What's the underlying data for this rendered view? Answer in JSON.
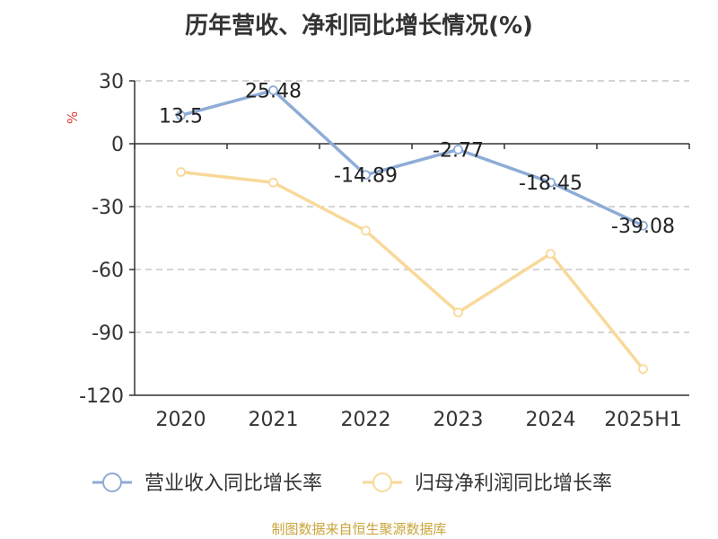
{
  "chart_data": {
    "type": "line",
    "title": "历年营收、净利同比增长情况(%)",
    "ylabel": "%",
    "xlabel": "",
    "categories": [
      "2020",
      "2021",
      "2022",
      "2023",
      "2024",
      "2025H1"
    ],
    "ylim": [
      -120,
      30
    ],
    "yticks": [
      30,
      0,
      -30,
      -60,
      -90,
      -120
    ],
    "grid": true,
    "legend_position": "bottom",
    "series": [
      {
        "name": "营业收入同比增长率",
        "color": "#8eacd6",
        "values": [
          13.5,
          25.48,
          -14.89,
          -2.77,
          -18.45,
          -39.08
        ],
        "labels": [
          "13.5",
          "25.48",
          "-14.89",
          "-2.77",
          "-18.45",
          "-39.08"
        ]
      },
      {
        "name": "归母净利润同比增长率",
        "color": "#f8d99a",
        "values": [
          -13.5,
          -18.5,
          -41.5,
          -80.5,
          -52.5,
          -107.5
        ],
        "labels": []
      }
    ]
  },
  "source_note": "制图数据来自恒生聚源数据库"
}
